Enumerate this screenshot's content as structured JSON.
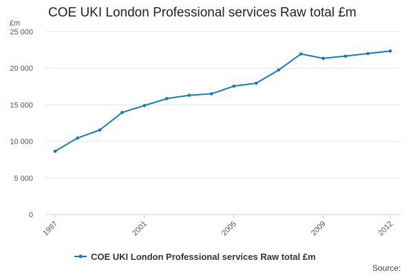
{
  "chart_data": {
    "type": "line",
    "title": "COE UKI London Professional services Raw total £m",
    "y_unit": "£m",
    "xlabel": "",
    "ylabel": "",
    "x": [
      1997,
      1998,
      1999,
      2000,
      2001,
      2002,
      2003,
      2004,
      2005,
      2006,
      2007,
      2008,
      2009,
      2010,
      2011,
      2012
    ],
    "x_ticks": [
      "1997",
      "2001",
      "2005",
      "2009",
      "2012"
    ],
    "y_ticks": [
      "0",
      "5 000",
      "10 000",
      "15 000",
      "20 000",
      "25 000"
    ],
    "ylim": [
      0,
      25000
    ],
    "grid": true,
    "legend_position": "bottom",
    "series": [
      {
        "name": "COE UKI London Professional services Raw total £m",
        "color": "#0f7cba",
        "values": [
          8650,
          10450,
          11550,
          13950,
          14900,
          15850,
          16300,
          16500,
          17550,
          17950,
          19750,
          21950,
          21350,
          21650,
          22000,
          22350
        ]
      }
    ]
  },
  "footer": {
    "source_label": "Source:"
  }
}
